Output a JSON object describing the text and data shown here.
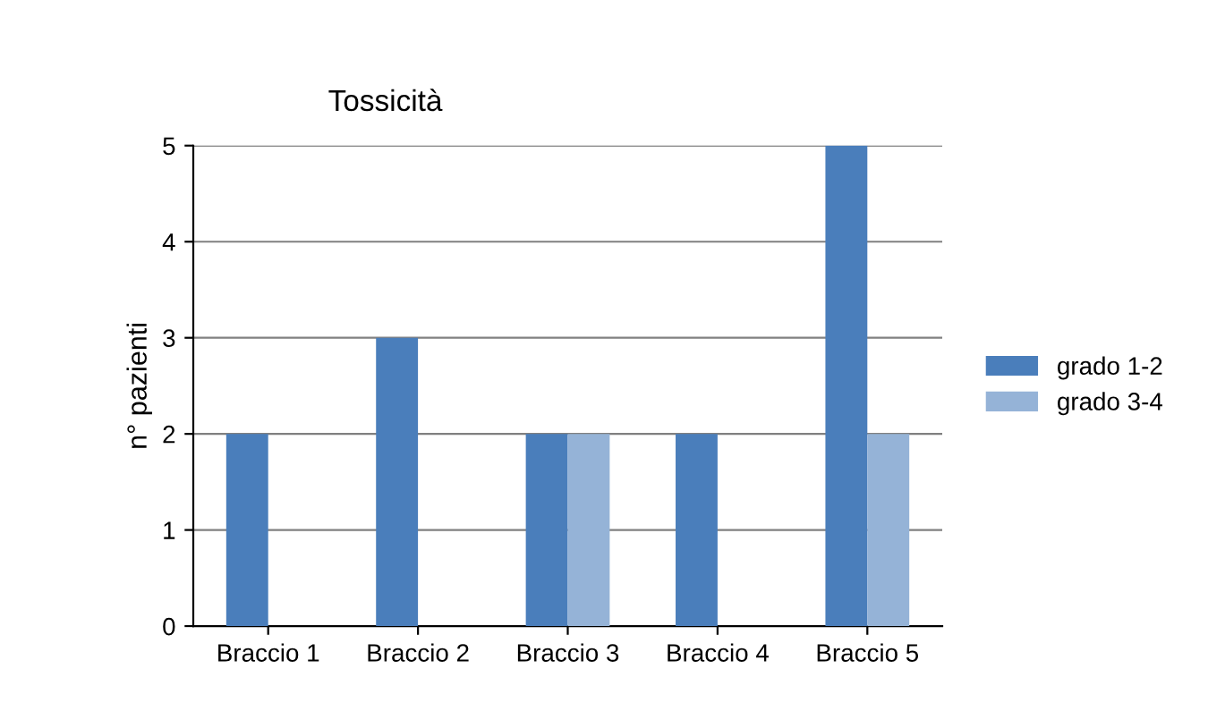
{
  "chart_data": {
    "type": "bar",
    "title": "Tossicità",
    "ylabel": "n° pazienti",
    "categories": [
      "Braccio 1",
      "Braccio 2",
      "Braccio 3",
      "Braccio 4",
      "Braccio 5"
    ],
    "series": [
      {
        "name": "grado 1-2",
        "color": "#4a7ebb",
        "values": [
          2,
          3,
          2,
          2,
          5
        ]
      },
      {
        "name": "grado 3-4",
        "color": "#95b3d7",
        "values": [
          0,
          0,
          2,
          0,
          2
        ]
      }
    ],
    "ylim": [
      0,
      5
    ],
    "yticks": [
      0,
      1,
      2,
      3,
      4,
      5
    ],
    "grid": "y",
    "legend": "right"
  }
}
